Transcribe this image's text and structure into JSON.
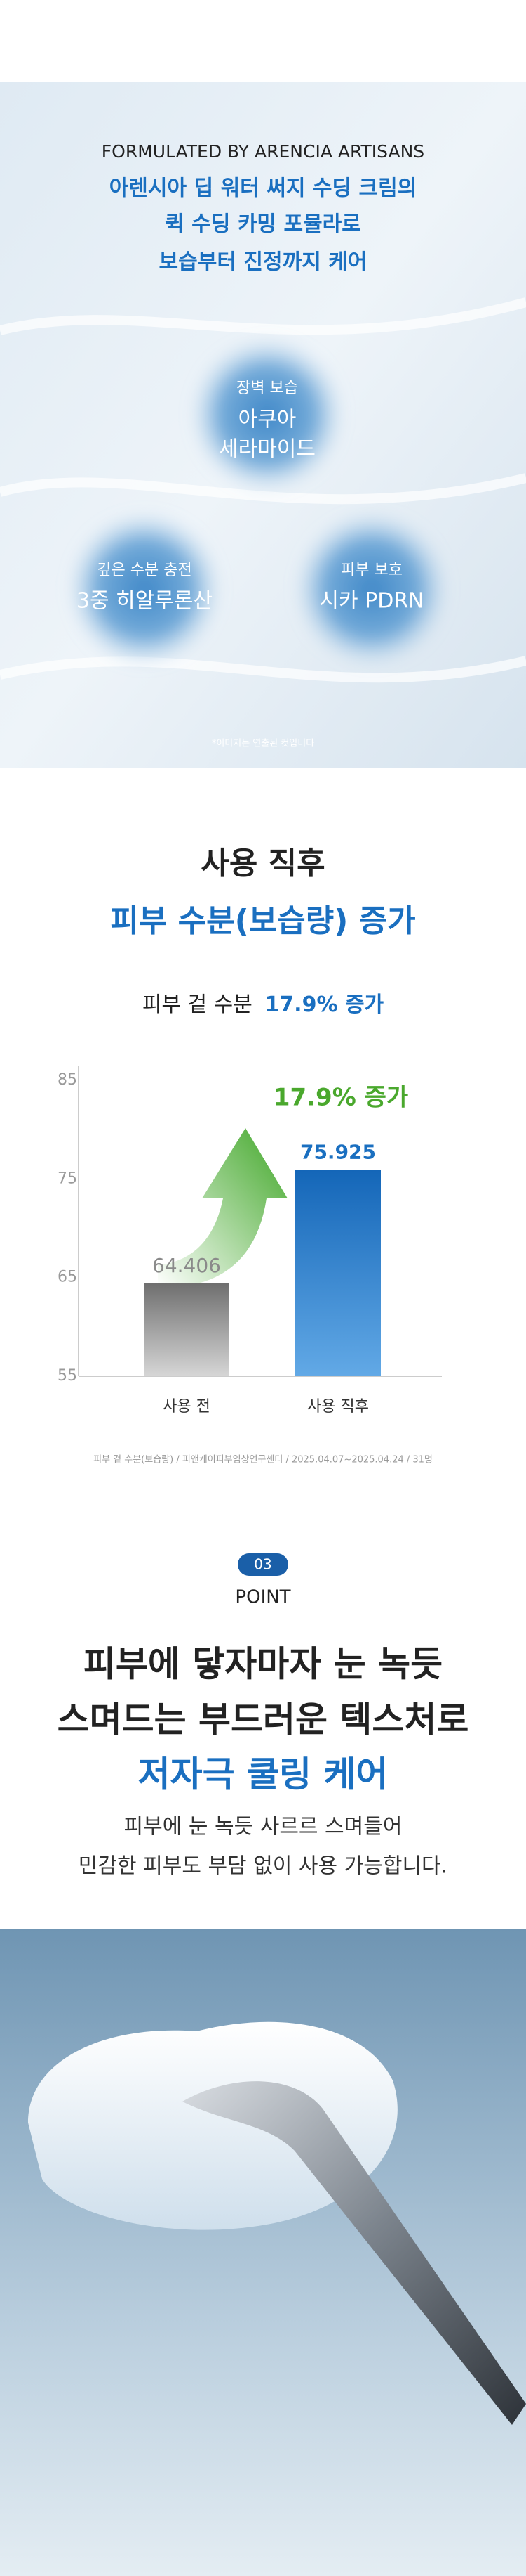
{
  "hero": {
    "eyebrow": "FORMULATED BY ARENCIA ARTISANS",
    "headline": [
      "아렌시아 딥 워터 써지 수딩 크림의",
      "퀵 수딩 카밍 포뮬라로",
      "보습부터 진정까지 케어"
    ],
    "features": [
      {
        "label": "장벽 보습",
        "name": [
          "아쿠아",
          "세라마이드"
        ]
      },
      {
        "label": "깊은 수분 충전",
        "name": [
          "3중 히알루론산"
        ]
      },
      {
        "label": "피부 보호",
        "name": [
          "시카 PDRN"
        ]
      }
    ],
    "caption": "*이미지는 연출된 컷입니다"
  },
  "chart_data": {
    "type": "bar",
    "title": "사용 직후",
    "subtitle": "피부 수분(보습량) 증가",
    "summary": "피부 겉 수분",
    "summary_highlight": "17.9% 증가",
    "annotation": "17.9% 증가",
    "categories": [
      "사용 전",
      "사용 직후"
    ],
    "values": [
      64.406,
      75.925
    ],
    "colors": [
      "#8a8a8a",
      "#1a6fc0"
    ],
    "ylim": [
      55,
      85
    ],
    "yticks": [
      55,
      65,
      75,
      85
    ],
    "grid": false,
    "source": "피부 겉 수분(보습량) / 피앤케이피부임상연구센터 / 2025.04.07~2025.04.24 / 31명"
  },
  "point": {
    "number": "03",
    "label": "POINT",
    "headline": [
      "피부에 닿자마자 눈 녹듯",
      "스며드는 부드러운 텍스처로",
      "저자극 쿨링 케어"
    ],
    "body": [
      "피부에 눈 녹듯 사르르 스며들어",
      "민감한 피부도 부담 없이 사용 가능합니다."
    ]
  }
}
